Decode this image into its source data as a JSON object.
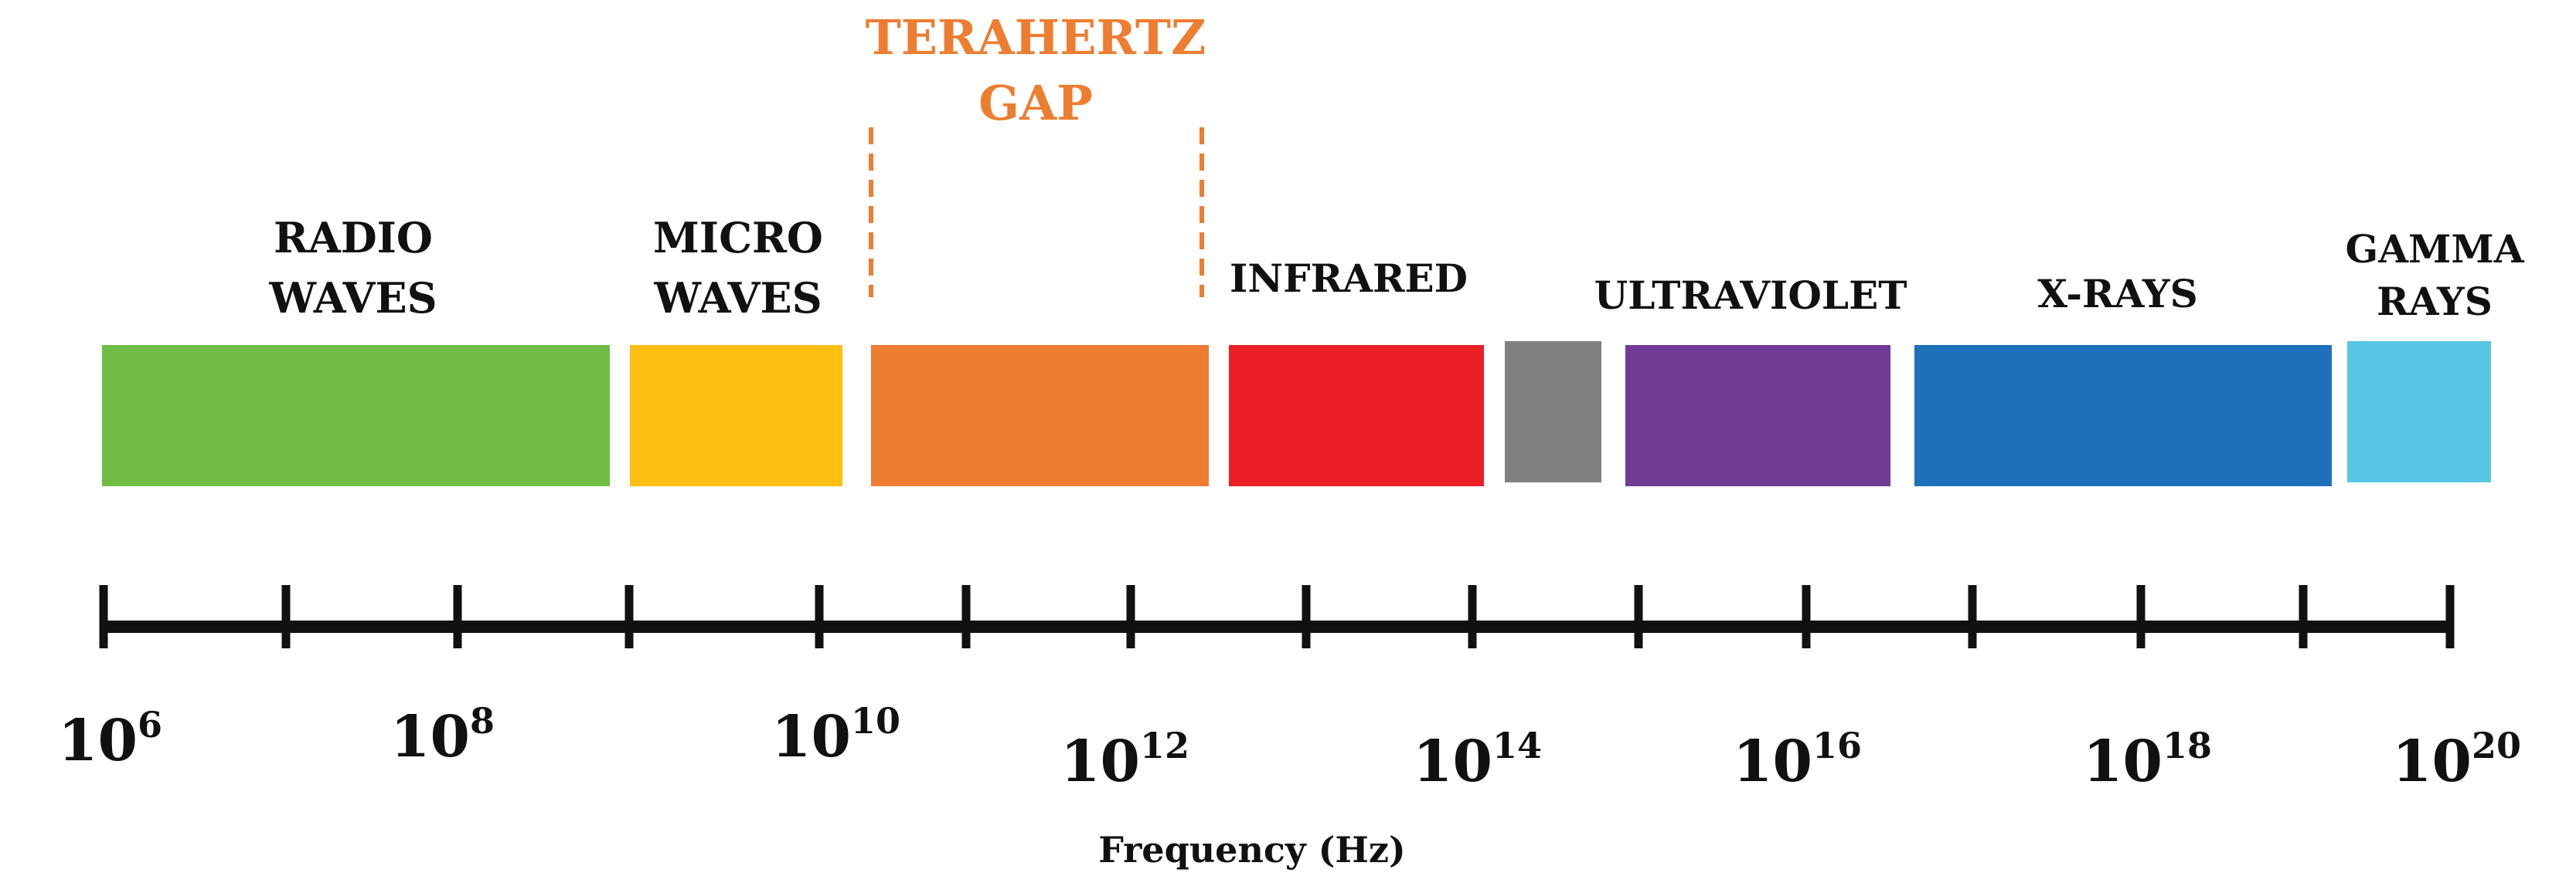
{
  "colors": {
    "radio": "#71bd44",
    "micro": "#fdbf12",
    "terahertz": "#ed7d31",
    "infrared": "#ec1f26",
    "visible": "#808080",
    "ultraviolet": "#703b95",
    "xray": "#1e70b8",
    "gamma": "#57c6e4",
    "axis": "#111111",
    "gap_label": "#ed7d31"
  },
  "gap_label": {
    "line1": "TERAHERTZ",
    "line2": "GAP"
  },
  "bands": {
    "radio": {
      "line1": "RADIO",
      "line2": "WAVES"
    },
    "micro": {
      "line1": "MICRO",
      "line2": "WAVES"
    },
    "infrared": {
      "line1": "INFRARED"
    },
    "ultraviolet": {
      "line1": "ULTRAVIOLET"
    },
    "xray": {
      "line1": "X-RAYS"
    },
    "gamma": {
      "line1": "GAMMA",
      "line2": "RAYS"
    }
  },
  "axis": {
    "title": "Frequency (Hz)",
    "base": "10",
    "exponents": [
      "6",
      "8",
      "10",
      "12",
      "14",
      "16",
      "18",
      "20"
    ]
  }
}
